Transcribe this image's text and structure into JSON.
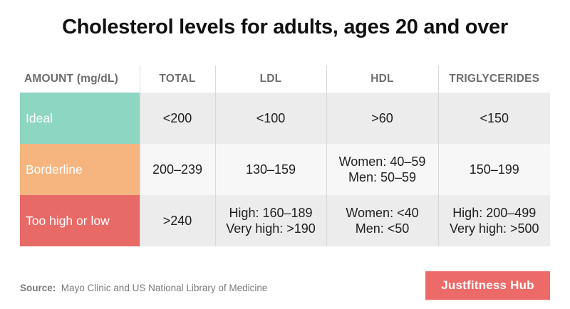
{
  "title": "Cholesterol levels for adults, ages 20 and over",
  "table": {
    "headers": [
      "AMOUNT (mg/dL)",
      "TOTAL",
      "LDL",
      "HDL",
      "TRIGLYCERIDES"
    ],
    "rows": [
      {
        "label": "Ideal",
        "color": "#8dd6c2",
        "cells": [
          [
            "<200"
          ],
          [
            "<100"
          ],
          [
            ">60"
          ],
          [
            "<150"
          ]
        ]
      },
      {
        "label": "Borderline",
        "color": "#f6b57f",
        "cells": [
          [
            "200–239"
          ],
          [
            "130–159"
          ],
          [
            "Women: 40–59",
            "Men: 50–59"
          ],
          [
            "150–199"
          ]
        ]
      },
      {
        "label": "Too high or low",
        "color": "#e86a67",
        "cells": [
          [
            ">240"
          ],
          [
            "High: 160–189",
            "Very high: >190"
          ],
          [
            "Women: <40",
            "Men: <50"
          ],
          [
            "High: 200–499",
            "Very high: >500"
          ]
        ]
      }
    ]
  },
  "source": {
    "label": "Source:",
    "text": "Mayo Clinic and US National Library of Medicine"
  },
  "brand": "Justfitness Hub"
}
